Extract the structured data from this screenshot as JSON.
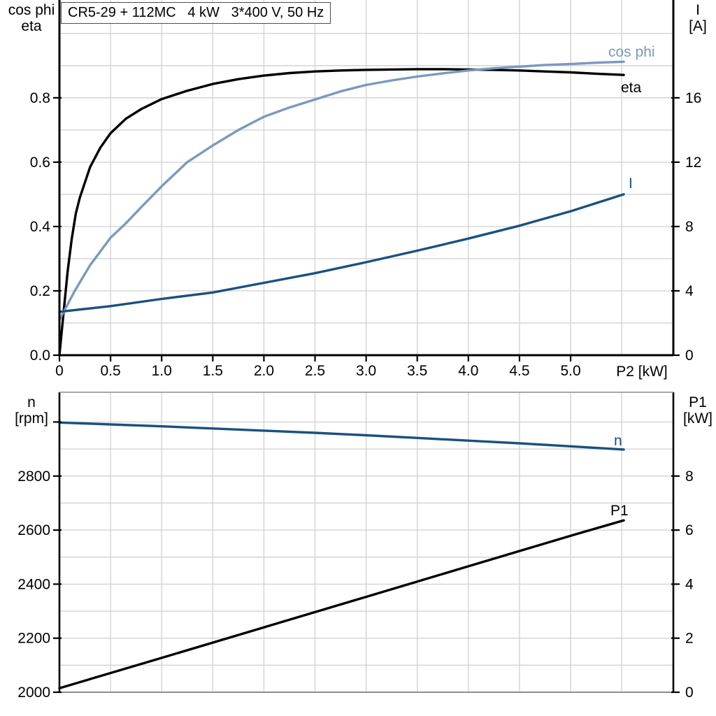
{
  "colors": {
    "background": "#ffffff",
    "grid": "#d3d3d3",
    "frame_gray": "#8c8c8c",
    "axis_black": "#000000",
    "eta_black": "#000000",
    "cos_phi_blue": "#7a99bd",
    "current_dark_blue": "#1a517f",
    "title_border": "#4d4d4d"
  },
  "chart_data": [
    {
      "type": "line",
      "title": "CR5-29 + 112MC   4 kW   3*400 V, 50 Hz",
      "x_axis": {
        "label": "P2 [kW]",
        "min": 0,
        "max": 6.005,
        "grid_step": 0.5,
        "tick_values": [
          0,
          0.5,
          1.0,
          1.5,
          2.0,
          2.5,
          3.0,
          3.5,
          4.0,
          4.5,
          5.0
        ],
        "tick_labels": [
          "0",
          "0.5",
          "1.0",
          "1.5",
          "2.0",
          "2.5",
          "3.0",
          "3.5",
          "4.0",
          "4.5",
          "5.0"
        ]
      },
      "left_axis": {
        "label_lines": [
          "cos phi",
          "eta"
        ],
        "min": 0,
        "max": 1.104,
        "grid_step": 0.1,
        "tick_values": [
          0,
          0.2,
          0.4,
          0.6,
          0.8
        ],
        "tick_labels": [
          "0.0",
          "0.2",
          "0.4",
          "0.6",
          "0.8"
        ]
      },
      "right_axis": {
        "label_lines": [
          "I",
          "[A]"
        ],
        "min": 0,
        "max": 22.08,
        "tick_values": [
          0,
          4,
          8,
          12,
          16
        ],
        "tick_labels": [
          "0",
          "4",
          "8",
          "12",
          "16"
        ]
      },
      "series": [
        {
          "name": "eta",
          "axis": "left",
          "color": "#000000",
          "points": [
            [
              0,
              0
            ],
            [
              0.04,
              0.13
            ],
            [
              0.08,
              0.26
            ],
            [
              0.12,
              0.36
            ],
            [
              0.16,
              0.44
            ],
            [
              0.2,
              0.49
            ],
            [
              0.3,
              0.585
            ],
            [
              0.4,
              0.645
            ],
            [
              0.5,
              0.69
            ],
            [
              0.65,
              0.735
            ],
            [
              0.8,
              0.765
            ],
            [
              1.0,
              0.796
            ],
            [
              1.25,
              0.822
            ],
            [
              1.5,
              0.843
            ],
            [
              1.75,
              0.858
            ],
            [
              2.0,
              0.869
            ],
            [
              2.25,
              0.877
            ],
            [
              2.5,
              0.882
            ],
            [
              2.75,
              0.885
            ],
            [
              3.0,
              0.887
            ],
            [
              3.25,
              0.888
            ],
            [
              3.5,
              0.889
            ],
            [
              3.75,
              0.889
            ],
            [
              4.0,
              0.888
            ],
            [
              4.25,
              0.887
            ],
            [
              4.5,
              0.885
            ],
            [
              4.75,
              0.882
            ],
            [
              5.0,
              0.879
            ],
            [
              5.25,
              0.875
            ],
            [
              5.52,
              0.871
            ]
          ]
        },
        {
          "name": "cos phi",
          "axis": "left",
          "color": "#7a99bd",
          "points": [
            [
              0,
              0.11
            ],
            [
              0.15,
              0.2
            ],
            [
              0.3,
              0.28
            ],
            [
              0.5,
              0.365
            ],
            [
              0.65,
              0.41
            ],
            [
              0.8,
              0.46
            ],
            [
              1.0,
              0.525
            ],
            [
              1.25,
              0.6
            ],
            [
              1.5,
              0.652
            ],
            [
              1.75,
              0.7
            ],
            [
              2.0,
              0.741
            ],
            [
              2.25,
              0.77
            ],
            [
              2.5,
              0.795
            ],
            [
              2.75,
              0.82
            ],
            [
              3.0,
              0.84
            ],
            [
              3.25,
              0.854
            ],
            [
              3.5,
              0.866
            ],
            [
              3.75,
              0.876
            ],
            [
              4.0,
              0.885
            ],
            [
              4.25,
              0.892
            ],
            [
              4.5,
              0.897
            ],
            [
              4.75,
              0.902
            ],
            [
              5.0,
              0.905
            ],
            [
              5.25,
              0.909
            ],
            [
              5.52,
              0.912
            ]
          ]
        },
        {
          "name": "I",
          "axis": "right",
          "color": "#1a517f",
          "points": [
            [
              0,
              2.7
            ],
            [
              0.5,
              3.05
            ],
            [
              1.0,
              3.5
            ],
            [
              1.5,
              3.9
            ],
            [
              2.0,
              4.5
            ],
            [
              2.5,
              5.1
            ],
            [
              3.0,
              5.78
            ],
            [
              3.5,
              6.5
            ],
            [
              4.0,
              7.25
            ],
            [
              4.5,
              8.05
            ],
            [
              5.0,
              8.95
            ],
            [
              5.52,
              10.0
            ]
          ]
        }
      ]
    },
    {
      "type": "line",
      "x_axis": {
        "min": 0,
        "max": 6.005,
        "grid_step": 0.5,
        "tick_values": [],
        "tick_labels": []
      },
      "left_axis": {
        "label_lines": [
          "n",
          "[rpm]"
        ],
        "min": 2000,
        "max": 3110,
        "grid_step": 100,
        "tick_values": [
          2000,
          2200,
          2400,
          2600,
          2800,
          3000
        ],
        "tick_labels": [
          "2000",
          "2200",
          "2400",
          "2600",
          "2800",
          ""
        ]
      },
      "right_axis": {
        "label_lines": [
          "P1",
          "[kW]"
        ],
        "min": 0,
        "max": 11.1,
        "tick_values": [
          0,
          2,
          4,
          6,
          8
        ],
        "tick_labels": [
          "0",
          "2",
          "4",
          "6",
          "8"
        ]
      },
      "series": [
        {
          "name": "n",
          "axis": "left",
          "color": "#1a517f",
          "points": [
            [
              0,
              2998
            ],
            [
              0.5,
              2991
            ],
            [
              1.0,
              2984
            ],
            [
              1.5,
              2976
            ],
            [
              2.0,
              2968
            ],
            [
              2.5,
              2960
            ],
            [
              3.0,
              2951
            ],
            [
              3.5,
              2941
            ],
            [
              4.0,
              2931
            ],
            [
              4.5,
              2921
            ],
            [
              5.0,
              2910
            ],
            [
              5.52,
              2898
            ]
          ]
        },
        {
          "name": "P1",
          "axis": "right",
          "color": "#000000",
          "points": [
            [
              0,
              0.15
            ],
            [
              1.0,
              1.27
            ],
            [
              2.0,
              2.4
            ],
            [
              3.0,
              3.53
            ],
            [
              4.0,
              4.66
            ],
            [
              5.0,
              5.79
            ],
            [
              5.52,
              6.36
            ]
          ]
        }
      ]
    }
  ]
}
